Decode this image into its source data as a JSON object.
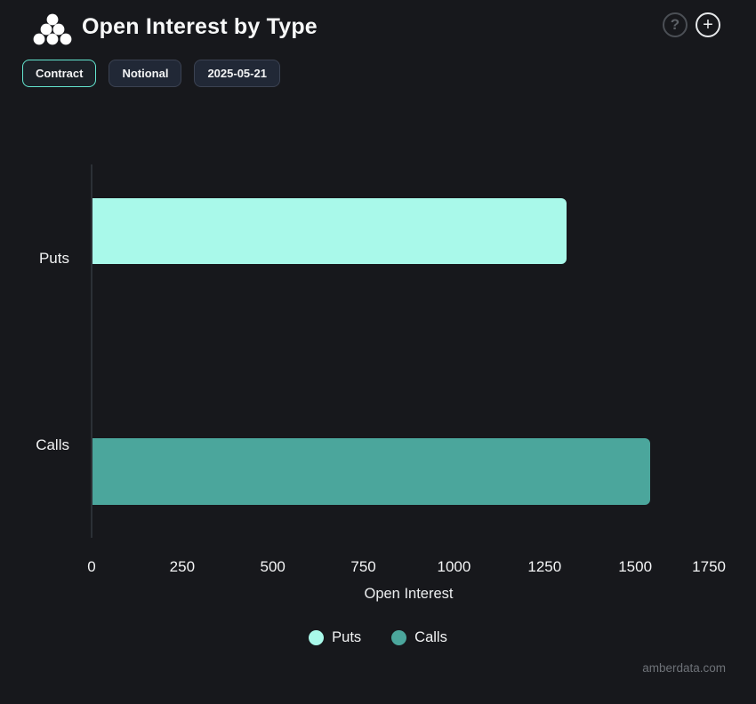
{
  "header": {
    "title": "Open Interest by Type",
    "help_glyph": "?",
    "add_glyph": "+"
  },
  "toolbar": {
    "buttons": [
      {
        "label": "Contract",
        "active": true
      },
      {
        "label": "Notional",
        "active": false
      },
      {
        "label": "2025-05-21",
        "active": false
      }
    ]
  },
  "chart_data": {
    "type": "bar",
    "orientation": "horizontal",
    "title": "Open Interest by Type",
    "categories": [
      "Puts",
      "Calls"
    ],
    "series": [
      {
        "name": "Puts",
        "color": "#a9f9ea",
        "values": [
          1310,
          null
        ]
      },
      {
        "name": "Calls",
        "color": "#4ba69c",
        "values": [
          null,
          1540
        ]
      }
    ],
    "xlabel": "Open Interest",
    "x_ticks": [
      "0",
      "250",
      "500",
      "750",
      "1000",
      "1250",
      "1500",
      "1750"
    ],
    "xlim": [
      0,
      1750
    ],
    "grid": false,
    "legend": [
      "Puts",
      "Calls"
    ],
    "legend_position": "bottom"
  },
  "watermark": "amberdata.com",
  "colors": {
    "background": "#17181c",
    "accent": "#63e6d0",
    "puts": "#a9f9ea",
    "calls": "#4ba69c",
    "axis_line": "#2c3036"
  }
}
